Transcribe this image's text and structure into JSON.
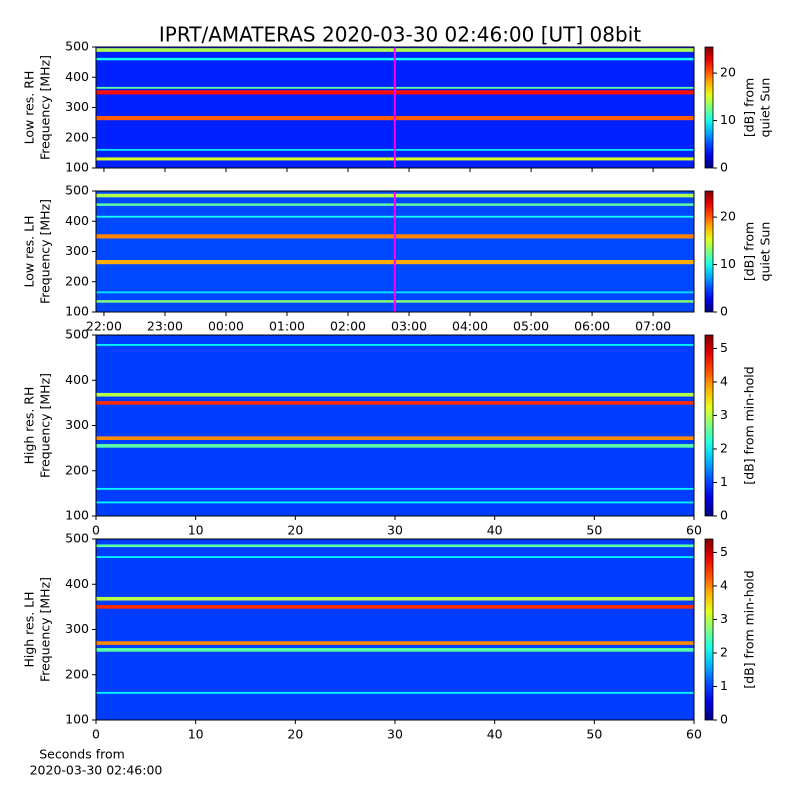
{
  "chart_data": [
    {
      "type": "heatmap",
      "title": "IPRT/AMATERAS 2020-03-30 02:46:00 [UT]   08bit",
      "ylabel_lines": [
        "Low res. RH",
        "Frequency [MHz]"
      ],
      "xlim": [
        -2.13,
        7.67
      ],
      "xticks": [
        -2,
        -1,
        0,
        1,
        2,
        3,
        4,
        5,
        6,
        7
      ],
      "ylim": [
        100,
        500
      ],
      "yticks": [
        100,
        200,
        300,
        400,
        500
      ],
      "cmap": "jet",
      "background": 4,
      "bands": [
        {
          "freq": 130,
          "width": 10,
          "level": 15
        },
        {
          "freq": 160,
          "width": 6,
          "level": 9
        },
        {
          "freq": 265,
          "width": 14,
          "level": 20
        },
        {
          "freq": 350,
          "width": 14,
          "level": 22
        },
        {
          "freq": 365,
          "width": 6,
          "level": 12
        },
        {
          "freq": 460,
          "width": 8,
          "level": 10
        },
        {
          "freq": 490,
          "width": 12,
          "level": 14
        }
      ],
      "marker_x": 2.767,
      "marker_color": "#ff00ff",
      "colorbar": {
        "label_lines": [
          "[dB] from",
          "quiet Sun"
        ],
        "lim": [
          0,
          25.5
        ],
        "ticks": [
          0,
          10,
          20
        ]
      }
    },
    {
      "type": "heatmap",
      "ylabel_lines": [
        "Low res. LH",
        "Frequency [MHz]"
      ],
      "xlim": [
        -2.13,
        7.67
      ],
      "xticks": [
        {
          "value": -2,
          "label": "22:00"
        },
        {
          "value": -1,
          "label": "23:00"
        },
        {
          "value": 0,
          "label": "00:00"
        },
        {
          "value": 1,
          "label": "01:00"
        },
        {
          "value": 2,
          "label": "02:00"
        },
        {
          "value": 3,
          "label": "03:00"
        },
        {
          "value": 4,
          "label": "04:00"
        },
        {
          "value": 5,
          "label": "05:00"
        },
        {
          "value": 6,
          "label": "06:00"
        },
        {
          "value": 7,
          "label": "07:00"
        }
      ],
      "ylim": [
        100,
        500
      ],
      "yticks": [
        100,
        200,
        300,
        400,
        500
      ],
      "cmap": "jet",
      "background": 5,
      "bands": [
        {
          "freq": 135,
          "width": 8,
          "level": 13
        },
        {
          "freq": 165,
          "width": 6,
          "level": 9
        },
        {
          "freq": 265,
          "width": 14,
          "level": 18
        },
        {
          "freq": 350,
          "width": 14,
          "level": 19
        },
        {
          "freq": 415,
          "width": 6,
          "level": 10
        },
        {
          "freq": 455,
          "width": 8,
          "level": 12
        },
        {
          "freq": 485,
          "width": 12,
          "level": 14
        }
      ],
      "marker_x": 2.767,
      "marker_color": "#ff00ff",
      "colorbar": {
        "label_lines": [
          "[dB] from",
          "quiet Sun"
        ],
        "lim": [
          0,
          25.5
        ],
        "ticks": [
          0,
          10,
          20
        ]
      }
    },
    {
      "type": "heatmap",
      "ylabel_lines": [
        "High res. RH",
        "Frequency [MHz]"
      ],
      "xlim": [
        0,
        60
      ],
      "xticks": [
        0,
        10,
        20,
        30,
        40,
        50,
        60
      ],
      "ylim": [
        100,
        500
      ],
      "yticks": [
        100,
        200,
        300,
        400,
        500
      ],
      "cmap": "jet",
      "background": 1,
      "bands": [
        {
          "freq": 130,
          "width": 4,
          "level": 2
        },
        {
          "freq": 160,
          "width": 4,
          "level": 2
        },
        {
          "freq": 255,
          "width": 8,
          "level": 2.5
        },
        {
          "freq": 272,
          "width": 8,
          "level": 4
        },
        {
          "freq": 350,
          "width": 8,
          "level": 4.5
        },
        {
          "freq": 368,
          "width": 8,
          "level": 3
        },
        {
          "freq": 478,
          "width": 4,
          "level": 2
        }
      ],
      "colorbar": {
        "label_lines": [
          "[dB] from min-hold"
        ],
        "lim": [
          0,
          5.4
        ],
        "ticks": [
          0,
          1,
          2,
          3,
          4,
          5
        ]
      }
    },
    {
      "type": "heatmap",
      "ylabel_lines": [
        "High res. LH",
        "Frequency [MHz]"
      ],
      "xlim": [
        0,
        60
      ],
      "xticks": [
        0,
        10,
        20,
        30,
        40,
        50,
        60
      ],
      "xlabel_lines": [
        "Seconds from",
        "2020-03-30 02:46:00"
      ],
      "ylim": [
        100,
        500
      ],
      "yticks": [
        100,
        200,
        300,
        400,
        500
      ],
      "cmap": "jet",
      "background": 1,
      "bands": [
        {
          "freq": 160,
          "width": 4,
          "level": 2
        },
        {
          "freq": 255,
          "width": 8,
          "level": 2.5
        },
        {
          "freq": 270,
          "width": 8,
          "level": 4
        },
        {
          "freq": 350,
          "width": 8,
          "level": 4.5
        },
        {
          "freq": 368,
          "width": 8,
          "level": 3
        },
        {
          "freq": 460,
          "width": 4,
          "level": 2
        },
        {
          "freq": 485,
          "width": 6,
          "level": 2.5
        }
      ],
      "colorbar": {
        "label_lines": [
          "[dB] from min-hold"
        ],
        "lim": [
          0,
          5.4
        ],
        "ticks": [
          0,
          1,
          2,
          3,
          4,
          5
        ]
      }
    }
  ]
}
